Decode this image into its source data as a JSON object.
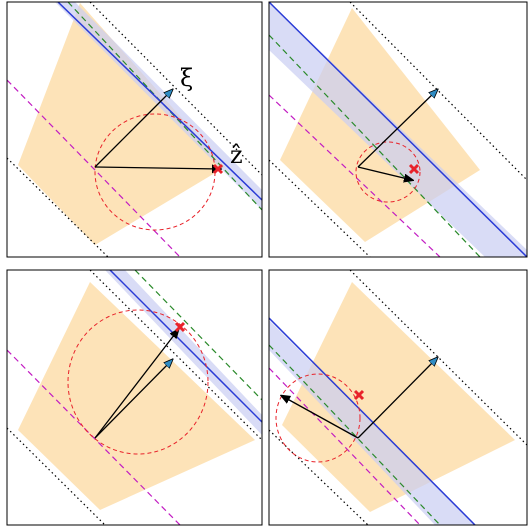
{
  "figure": {
    "panels": [
      {
        "id": "top-left"
      },
      {
        "id": "top-right"
      },
      {
        "id": "bottom-left"
      },
      {
        "id": "bottom-right"
      }
    ]
  },
  "labels": {
    "xi": "ξ",
    "zhat": "ẑ"
  },
  "colors": {
    "cone_fill": "#fde3b8",
    "band_fill": "#c9cdf2",
    "blue_line": "#2a3bd6",
    "green_dashed": "#2a8a2a",
    "magenta_dashed": "#c21cc2",
    "boundary_dotted": "#000000",
    "circle_dashed": "#e8222a",
    "marker": "#e8222a",
    "arrow_fill": "#2f8cc4",
    "arrow_black": "#000000",
    "frame": "#000000"
  },
  "icons": {
    "marker": "red-x-marker"
  }
}
